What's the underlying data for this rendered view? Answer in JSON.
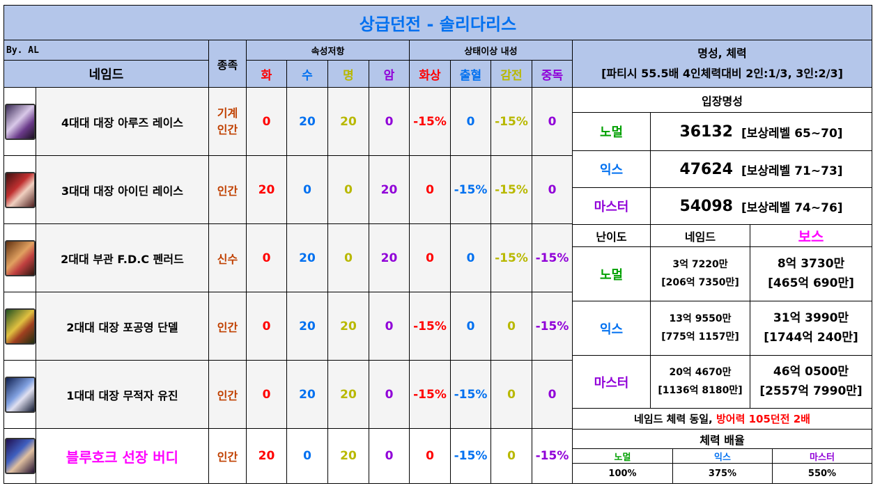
{
  "title": "상급던전 - 솔리다리스",
  "author": "By. AL",
  "headers": {
    "named": "네임드",
    "race": "종족",
    "element_group": "속성저항",
    "status_group": "상태이상 내성",
    "elements": [
      "화",
      "수",
      "명",
      "암"
    ],
    "statuses": [
      "화상",
      "출혈",
      "감전",
      "중독"
    ]
  },
  "rows": [
    {
      "name": "4대대 대장 아루즈 레이스",
      "race_line1": "기계",
      "race_line2": "인간",
      "values": [
        "0",
        "20",
        "20",
        "0",
        "-15%",
        "0",
        "-15%",
        "0"
      ]
    },
    {
      "name": "3대대 대장 아이딘 레이스",
      "race": "인간",
      "values": [
        "20",
        "0",
        "0",
        "20",
        "0",
        "-15%",
        "-15%",
        "0"
      ]
    },
    {
      "name": "2대대 부관 F.D.C 펜러드",
      "race": "신수",
      "values": [
        "0",
        "20",
        "0",
        "20",
        "0",
        "0",
        "-15%",
        "-15%"
      ]
    },
    {
      "name": "2대대 대장 포공영 단델",
      "race": "인간",
      "values": [
        "0",
        "20",
        "20",
        "0",
        "-15%",
        "0",
        "0",
        "-15%"
      ]
    },
    {
      "name": "1대대 대장 무적자 유진",
      "race": "인간",
      "values": [
        "0",
        "20",
        "20",
        "0",
        "-15%",
        "-15%",
        "0",
        "0"
      ]
    },
    {
      "name": "블루호크 선장 버디",
      "race": "인간",
      "values": [
        "20",
        "0",
        "20",
        "0",
        "0",
        "-15%",
        "0",
        "-15%"
      ]
    }
  ],
  "icons": [
    "portrait-arooz-icon",
    "portrait-aidin-icon",
    "portrait-fdc-icon",
    "portrait-dandel-icon",
    "portrait-yujin-icon",
    "portrait-buddy-icon"
  ],
  "fame": {
    "title": "명성, 체력",
    "party_note": "[파티시 55.5배 4인체력대비 2인:1/3, 3인:2/3]",
    "entry_title": "입장명성",
    "entries": [
      {
        "difficulty": "노멀",
        "value": "36132",
        "reward": "[보상레벨 65~70]"
      },
      {
        "difficulty": "익스",
        "value": "47624",
        "reward": "[보상레벨 71~73]"
      },
      {
        "difficulty": "마스터",
        "value": "54098",
        "reward": "[보상레벨 74~76]"
      }
    ]
  },
  "hp": {
    "col_difficulty": "난이도",
    "col_named": "네임드",
    "col_boss": "보스",
    "rows": [
      {
        "difficulty": "노멀",
        "named_hp": "3억 7220만",
        "named_party": "[206억 7350만]",
        "boss_hp": "8억 3730만",
        "boss_party": "[465억 690만]"
      },
      {
        "difficulty": "익스",
        "named_hp": "13억 9550만",
        "named_party": "[775억 1157만]",
        "boss_hp": "31억 3990만",
        "boss_party": "[1744억 240만]"
      },
      {
        "difficulty": "마스터",
        "named_hp": "20억 4670만",
        "named_party": "[1136억 8180만]",
        "boss_hp": "46억 0500만",
        "boss_party": "[2557억 7990만]"
      }
    ],
    "note_black": "네임드 체력 동일, ",
    "note_red": "방어력 105던전 2배"
  },
  "multiplier": {
    "title": "체력 배율",
    "labels": [
      "노멀",
      "익스",
      "마스터"
    ],
    "values": [
      "100%",
      "375%",
      "550%"
    ]
  },
  "colors": {
    "header_bg": "#b4c6ea",
    "title_text": "#0070f0",
    "fire": "#ff0000",
    "water": "#0070f0",
    "light": "#b8b800",
    "dark": "#9000d8",
    "race": "#c04000",
    "normal": "#00a000",
    "master": "#9000d8",
    "boss": "#ff00ff"
  }
}
